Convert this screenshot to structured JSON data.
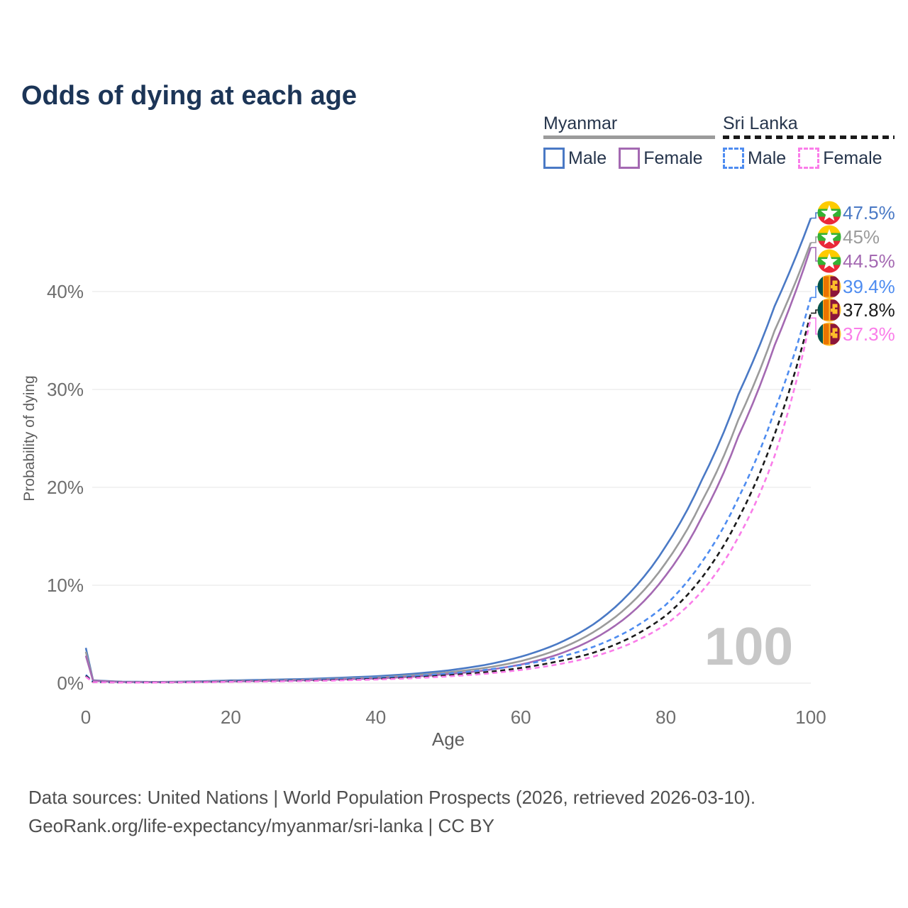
{
  "title": "Odds of dying at each age",
  "watermark": "100",
  "legend": {
    "groups": [
      {
        "country": "Myanmar",
        "line_style": "solid",
        "items": [
          {
            "label": "Male"
          },
          {
            "label": "Female"
          }
        ]
      },
      {
        "country": "Sri Lanka",
        "line_style": "dashed",
        "items": [
          {
            "label": "Male"
          },
          {
            "label": "Female"
          }
        ]
      }
    ]
  },
  "footer": {
    "line1": "Data sources: United Nations | World Population Prospects (2026, retrieved 2026-03-10).",
    "line2": "GeoRank.org/life-expectancy/myanmar/sri-lanka | CC BY"
  },
  "chart_data": {
    "type": "line",
    "title": "Odds of dying at each age",
    "xlabel": "Age",
    "ylabel": "Probability of dying",
    "x_ticks": [
      0,
      20,
      40,
      60,
      80,
      100
    ],
    "y_ticks": [
      "0%",
      "10%",
      "20%",
      "30%",
      "40%"
    ],
    "xlim": [
      0,
      100
    ],
    "ylim": [
      "0%",
      "47.5%"
    ],
    "grid": "horizontal",
    "legend_position": "top-right",
    "x": [
      0,
      1,
      5,
      10,
      15,
      20,
      25,
      30,
      35,
      40,
      45,
      50,
      55,
      60,
      65,
      70,
      75,
      80,
      85,
      90,
      95,
      100
    ],
    "series": [
      {
        "name": "Myanmar Male",
        "country": "Myanmar",
        "sex": "Male",
        "color": "#4a79c5",
        "dash": "solid",
        "end_label": "47.5%",
        "flag": "myanmar",
        "values_pct": [
          3.6,
          0.3,
          0.15,
          0.12,
          0.18,
          0.28,
          0.35,
          0.42,
          0.55,
          0.7,
          0.95,
          1.3,
          1.85,
          2.7,
          4.0,
          6.0,
          9.2,
          14.0,
          20.8,
          29.5,
          38.5,
          47.5
        ]
      },
      {
        "name": "Myanmar Both sexes",
        "country": "Myanmar",
        "sex": "Both sexes",
        "color": "#9b9b9b",
        "dash": "solid",
        "end_label": "45%",
        "flag": "myanmar",
        "values_pct": [
          3.2,
          0.27,
          0.13,
          0.11,
          0.15,
          0.23,
          0.29,
          0.35,
          0.46,
          0.58,
          0.8,
          1.1,
          1.55,
          2.25,
          3.4,
          5.2,
          8.0,
          12.3,
          18.6,
          26.9,
          36.0,
          45.0
        ]
      },
      {
        "name": "Myanmar Female",
        "country": "Myanmar",
        "sex": "Female",
        "color": "#a469b2",
        "dash": "solid",
        "end_label": "44.5%",
        "flag": "myanmar",
        "values_pct": [
          2.8,
          0.24,
          0.12,
          0.1,
          0.13,
          0.18,
          0.23,
          0.29,
          0.38,
          0.48,
          0.66,
          0.92,
          1.3,
          1.9,
          2.9,
          4.5,
          7.0,
          11.0,
          17.0,
          25.2,
          34.5,
          44.5
        ]
      },
      {
        "name": "Sri Lanka Male",
        "country": "Sri Lanka",
        "sex": "Male",
        "color": "#4e8cf0",
        "dash": "dashed",
        "end_label": "39.4%",
        "flag": "sri-lanka",
        "values_pct": [
          0.85,
          0.12,
          0.08,
          0.08,
          0.12,
          0.2,
          0.26,
          0.32,
          0.42,
          0.55,
          0.72,
          0.98,
          1.35,
          1.85,
          2.6,
          3.7,
          5.4,
          8.0,
          12.4,
          18.9,
          27.8,
          39.4
        ]
      },
      {
        "name": "Sri Lanka Both sexes",
        "country": "Sri Lanka",
        "sex": "Both sexes",
        "color": "#1a1a1a",
        "dash": "dashed",
        "end_label": "37.8%",
        "flag": "sri-lanka",
        "values_pct": [
          0.75,
          0.11,
          0.07,
          0.07,
          0.1,
          0.16,
          0.2,
          0.25,
          0.33,
          0.44,
          0.58,
          0.8,
          1.1,
          1.55,
          2.2,
          3.1,
          4.6,
          6.9,
          10.8,
          16.8,
          25.4,
          37.8
        ]
      },
      {
        "name": "Sri Lanka Female",
        "country": "Sri Lanka",
        "sex": "Female",
        "color": "#fa7de9",
        "dash": "dashed",
        "end_label": "37.3%",
        "flag": "sri-lanka",
        "values_pct": [
          0.65,
          0.1,
          0.06,
          0.06,
          0.09,
          0.13,
          0.17,
          0.21,
          0.28,
          0.37,
          0.5,
          0.69,
          0.95,
          1.35,
          1.9,
          2.7,
          4.0,
          6.0,
          9.4,
          14.9,
          23.2,
          37.3
        ]
      }
    ]
  }
}
